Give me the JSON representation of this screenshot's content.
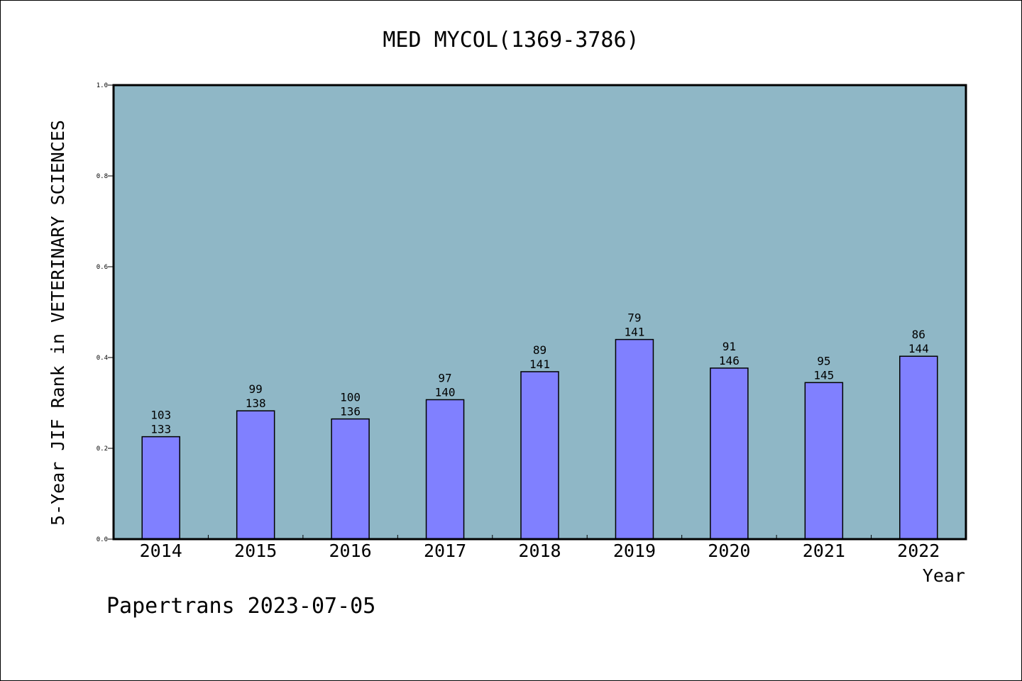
{
  "chart_data": {
    "type": "bar",
    "title": "MED MYCOL(1369-3786)",
    "xlabel": "Year",
    "ylabel": "5-Year JIF Rank in VETERINARY SCIENCES",
    "ylim": [
      0,
      1.0
    ],
    "yticks": [
      "0.0",
      "0.2",
      "0.4",
      "0.6",
      "0.8",
      "1.0"
    ],
    "categories": [
      "2014",
      "2015",
      "2016",
      "2017",
      "2018",
      "2019",
      "2020",
      "2021",
      "2022"
    ],
    "ranks": [
      "103",
      "99",
      "100",
      "97",
      "89",
      "79",
      "91",
      "95",
      "86"
    ],
    "totals": [
      "133",
      "138",
      "136",
      "140",
      "141",
      "141",
      "146",
      "145",
      "144"
    ],
    "values": [
      0.2256,
      0.2826,
      0.2647,
      0.3071,
      0.3688,
      0.4397,
      0.3767,
      0.3448,
      0.4028
    ],
    "grid": false,
    "colors": {
      "plot_bg": "#8fb7c6",
      "bar": "#8080ff"
    }
  },
  "footer": "Papertrans 2023-07-05"
}
